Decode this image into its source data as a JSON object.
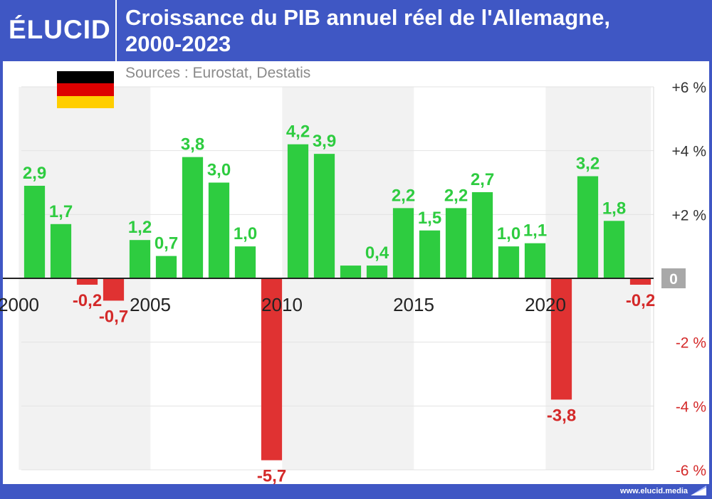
{
  "header": {
    "logo_text": "ÉLUCID",
    "title_line1": "Croissance du PIB annuel réel de l'Allemagne,",
    "title_line2": "2000-2023"
  },
  "sources": "Sources : Eurostat, Destatis",
  "footer": {
    "url": "www.elucid.media",
    "mark_icon": "elucid-flag-icon"
  },
  "flag": {
    "icon": "germany-flag-icon",
    "colors": [
      "#000000",
      "#dd0000",
      "#ffce00"
    ]
  },
  "colors": {
    "positive": "#2ecc40",
    "negative": "#e03232",
    "positive_label": "#2ecc40",
    "negative_label": "#d42a2a",
    "band": "#f2f2f2",
    "zero_box": "#a8a8a8",
    "brand": "#3f57c4"
  },
  "chart_data": {
    "type": "bar",
    "title": "Croissance du PIB annuel réel de l'Allemagne, 2000-2023",
    "xlabel": "",
    "ylabel": "",
    "categories": [
      "2000",
      "2001",
      "2002",
      "2003",
      "2004",
      "2005",
      "2006",
      "2007",
      "2008",
      "2009",
      "2010",
      "2011",
      "2012",
      "2013",
      "2014",
      "2015",
      "2016",
      "2017",
      "2018",
      "2019",
      "2020",
      "2021",
      "2022",
      "2023"
    ],
    "values": [
      2.9,
      1.7,
      -0.2,
      -0.7,
      1.2,
      0.7,
      3.8,
      3.0,
      1.0,
      -5.7,
      4.2,
      3.9,
      0.4,
      0.4,
      2.2,
      1.5,
      2.2,
      2.7,
      1.0,
      1.1,
      -3.8,
      3.2,
      1.8,
      -0.2
    ],
    "data_labels": [
      "2,9",
      "1,7",
      "-0,2",
      "-0,7",
      "1,2",
      "0,7",
      "3,8",
      "3,0",
      "1,0",
      "-5,7",
      "4,2",
      "3,9",
      "",
      "0,4",
      "2,2",
      "1,5",
      "2,2",
      "2,7",
      "1,0",
      "1,1",
      "-3,8",
      "3,2",
      "1,8",
      "-0,2"
    ],
    "ylim": [
      -6,
      6
    ],
    "y_ticks": [
      6,
      4,
      2,
      0,
      -2,
      -4,
      -6
    ],
    "y_tick_labels": [
      "+6 %",
      "+4 %",
      "+2 %",
      "0",
      "-2 %",
      "-4 %",
      "-6 %"
    ],
    "x_tick_labels": [
      {
        "category": "2000",
        "label": "2000"
      },
      {
        "category": "2005",
        "label": "2005"
      },
      {
        "category": "2010",
        "label": "2010"
      },
      {
        "category": "2015",
        "label": "2015"
      },
      {
        "category": "2020",
        "label": "2020"
      }
    ],
    "grid": true,
    "legend": "none"
  }
}
